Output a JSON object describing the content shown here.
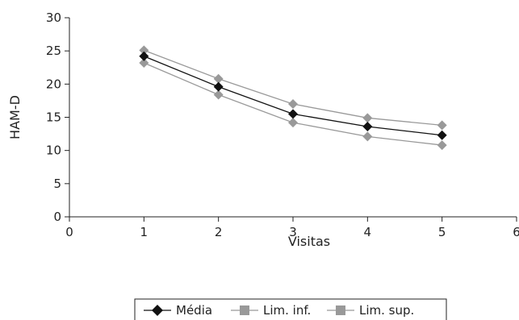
{
  "chart_data": {
    "type": "line",
    "title": "",
    "xlabel": "Visitas",
    "ylabel": "HAM-D",
    "xlim": [
      0,
      6
    ],
    "ylim": [
      0,
      30
    ],
    "xticks": [
      "0",
      "1",
      "2",
      "3",
      "4",
      "5",
      "6"
    ],
    "yticks": [
      "0",
      "5",
      "10",
      "15",
      "20",
      "25",
      "30"
    ],
    "grid": false,
    "legend_position": "bottom",
    "x": [
      1,
      2,
      3,
      4,
      5
    ],
    "series": [
      {
        "name": "Média",
        "values": [
          24.2,
          19.6,
          15.5,
          13.6,
          12.3
        ],
        "color": "#111111",
        "marker": "diamond"
      },
      {
        "name": "Lim. inf.",
        "values": [
          23.2,
          18.4,
          14.2,
          12.1,
          10.8
        ],
        "color": "#999999",
        "marker": "diamond"
      },
      {
        "name": "Lim. sup.",
        "values": [
          25.1,
          20.8,
          17.0,
          14.9,
          13.8
        ],
        "color": "#999999",
        "marker": "diamond"
      }
    ]
  }
}
